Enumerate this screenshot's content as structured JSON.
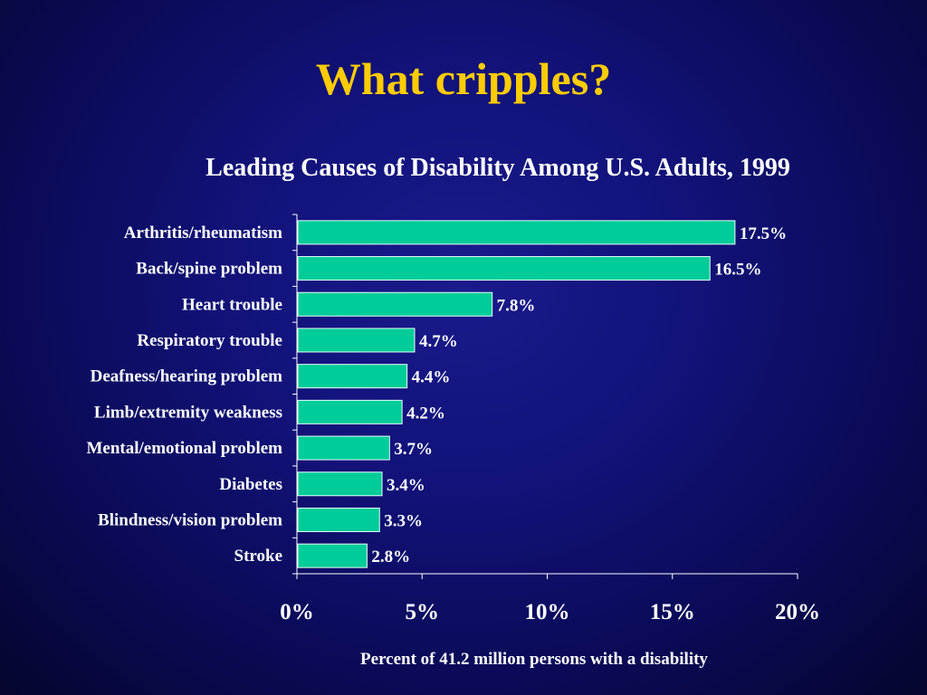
{
  "slide": {
    "title": "What cripples?"
  },
  "chart_data": {
    "type": "bar",
    "orientation": "horizontal",
    "title": "Leading Causes of Disability Among U.S. Adults, 1999",
    "xlabel": "Percent of 41.2 million persons with a disability",
    "ylabel": "",
    "categories": [
      "Arthritis/rheumatism",
      "Back/spine problem",
      "Heart trouble",
      "Respiratory trouble",
      "Deafness/hearing problem",
      "Limb/extremity weakness",
      "Mental/emotional problem",
      "Diabetes",
      "Blindness/vision problem",
      "Stroke"
    ],
    "values": [
      17.5,
      16.5,
      7.8,
      4.7,
      4.4,
      4.2,
      3.7,
      3.4,
      3.3,
      2.8
    ],
    "value_labels": [
      "17.5%",
      "16.5%",
      "7.8%",
      "4.7%",
      "4.4%",
      "4.2%",
      "3.7%",
      "3.4%",
      "3.3%",
      "2.8%"
    ],
    "xlim": [
      0,
      20
    ],
    "xticks": [
      0,
      5,
      10,
      15,
      20
    ],
    "xtick_labels": [
      "0%",
      "5%",
      "10%",
      "15%",
      "20%"
    ],
    "grid": false,
    "legend": "none",
    "colors": {
      "bar": "#00cc99",
      "bar_edge": "#e8fff8",
      "title": "#ffcc00",
      "text": "#ffffff",
      "axis": "#ffffff"
    }
  }
}
